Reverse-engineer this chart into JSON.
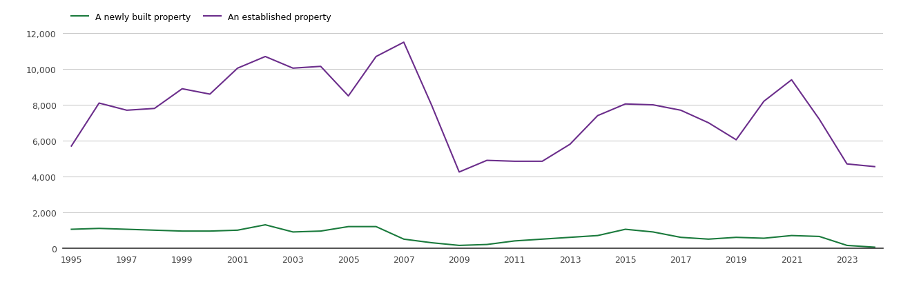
{
  "years": [
    1995,
    1996,
    1997,
    1998,
    1999,
    2000,
    2001,
    2002,
    2003,
    2004,
    2005,
    2006,
    2007,
    2008,
    2009,
    2010,
    2011,
    2012,
    2013,
    2014,
    2015,
    2016,
    2017,
    2018,
    2019,
    2020,
    2021,
    2022,
    2023,
    2024
  ],
  "newly_built": [
    1050,
    1100,
    1050,
    1000,
    950,
    950,
    1000,
    1300,
    900,
    950,
    1200,
    1200,
    500,
    300,
    150,
    200,
    400,
    500,
    600,
    700,
    1050,
    900,
    600,
    500,
    600,
    550,
    700,
    650,
    150,
    50
  ],
  "established": [
    5700,
    8100,
    7700,
    7800,
    8900,
    8600,
    10050,
    10700,
    10050,
    10150,
    8500,
    10700,
    11500,
    8000,
    4250,
    4900,
    4850,
    4850,
    5800,
    7400,
    8050,
    8000,
    7700,
    7000,
    6050,
    8200,
    9400,
    7200,
    4700,
    4550
  ],
  "newly_built_color": "#1a7a3c",
  "established_color": "#6b2d8b",
  "newly_built_label": "A newly built property",
  "established_label": "An established property",
  "ylim": [
    0,
    12000
  ],
  "yticks": [
    0,
    2000,
    4000,
    6000,
    8000,
    10000,
    12000
  ],
  "xtick_step": 2,
  "background_color": "#ffffff",
  "grid_color": "#cccccc",
  "figsize": [
    13.05,
    4.1
  ],
  "dpi": 100
}
